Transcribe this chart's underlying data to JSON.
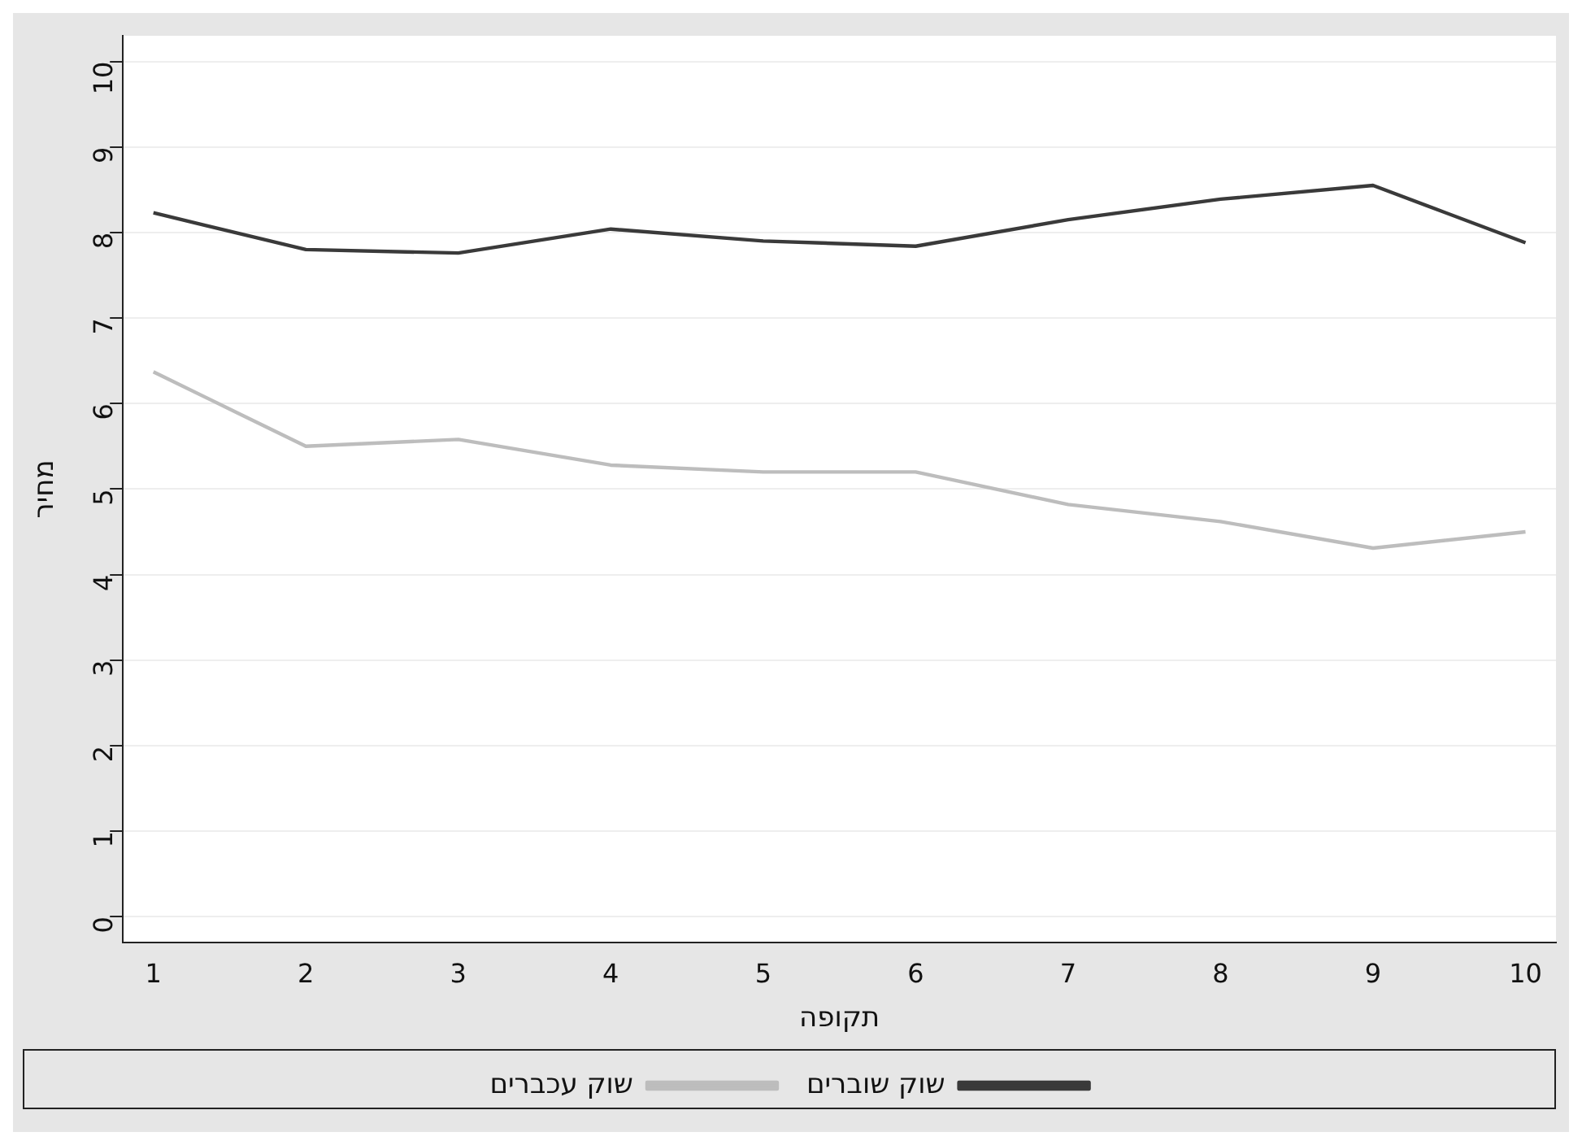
{
  "chart_data": {
    "type": "line",
    "xlabel": "תקופה",
    "ylabel": "מחיר",
    "x": [
      1,
      2,
      3,
      4,
      5,
      6,
      7,
      8,
      9,
      10
    ],
    "series": [
      {
        "name": "שוק שוברים",
        "color": "#3a3a3a",
        "values": [
          8.23,
          7.8,
          7.76,
          8.04,
          7.9,
          7.84,
          8.15,
          8.39,
          8.55,
          7.88
        ]
      },
      {
        "name": "שוק עכברים",
        "color": "#bdbdbd",
        "values": [
          6.37,
          5.5,
          5.58,
          5.28,
          5.2,
          5.2,
          4.82,
          4.62,
          4.31,
          4.5
        ]
      }
    ],
    "xlim": [
      0.8,
      10.2
    ],
    "xticks": [
      1,
      2,
      3,
      4,
      5,
      6,
      7,
      8,
      9,
      10
    ],
    "ylim": [
      -0.3,
      10.3
    ],
    "yticks": [
      0,
      1,
      2,
      3,
      4,
      5,
      6,
      7,
      8,
      9,
      10
    ],
    "grid": "y",
    "legend": "bottom",
    "marker": "none",
    "line_style": "solid"
  }
}
